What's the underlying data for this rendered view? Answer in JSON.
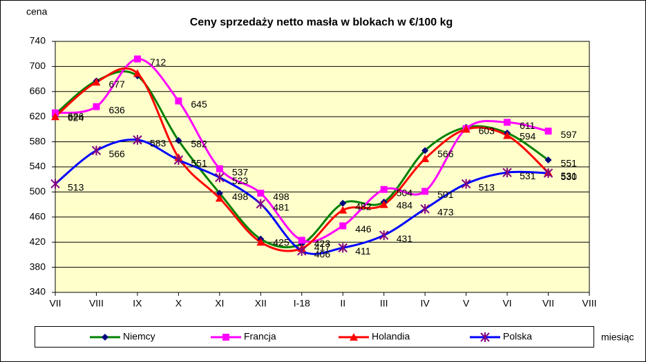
{
  "chart_data": {
    "type": "line",
    "title": "Ceny sprzedaży netto masła w blokach w €/100 kg",
    "y_label": "cena",
    "x_label": "miesiąc",
    "categories": [
      "VII",
      "VIII",
      "IX",
      "X",
      "XI",
      "XII",
      "I-18",
      "II",
      "III",
      "IV",
      "V",
      "VI",
      "VII",
      "VIII"
    ],
    "ylim": [
      340,
      740
    ],
    "yticks": [
      340,
      380,
      420,
      460,
      500,
      540,
      580,
      620,
      660,
      700,
      740
    ],
    "grid": true,
    "background": "#ffffcc",
    "smooth": true,
    "legend": "bottom",
    "series": [
      {
        "name": "Niemcy",
        "color": "#008000",
        "marker_color": "#000080",
        "marker": "diamond",
        "values": [
          624,
          677,
          685,
          582,
          498,
          425,
          417,
          482,
          484,
          566,
          603,
          594,
          551,
          null
        ],
        "value_labels": [
          "624",
          "677",
          null,
          "582",
          "498",
          "425",
          "417",
          "482",
          "484",
          "566",
          "603",
          "594",
          "551",
          null
        ]
      },
      {
        "name": "Francja",
        "color": "#ff00ff",
        "marker_color": "#ff00ff",
        "marker": "square",
        "values": [
          626,
          636,
          712,
          645,
          537,
          498,
          423,
          446,
          504,
          501,
          601,
          611,
          597,
          null
        ],
        "value_labels": [
          "626",
          "636",
          "712",
          "645",
          "537",
          "498",
          "423",
          "446",
          "504",
          "501",
          null,
          "611",
          "597",
          null
        ]
      },
      {
        "name": "Holandia",
        "color": "#ff0000",
        "marker_color": "#ff0000",
        "marker": "triangle",
        "values": [
          620,
          675,
          689,
          555,
          490,
          420,
          410,
          471,
          480,
          553,
          600,
          590,
          531,
          null
        ],
        "value_labels": [
          null,
          null,
          null,
          null,
          null,
          null,
          null,
          null,
          null,
          null,
          null,
          null,
          "531",
          null
        ]
      },
      {
        "name": "Polska",
        "color": "#0000ff",
        "marker_color": "#800080",
        "marker": "star",
        "values": [
          513,
          566,
          583,
          551,
          523,
          481,
          406,
          411,
          431,
          473,
          513,
          531,
          530,
          null
        ],
        "value_labels": [
          "513",
          "566",
          "583",
          "551",
          "523",
          "481",
          "406",
          "411",
          "431",
          "473",
          "513",
          "531",
          "530",
          null
        ]
      }
    ]
  }
}
